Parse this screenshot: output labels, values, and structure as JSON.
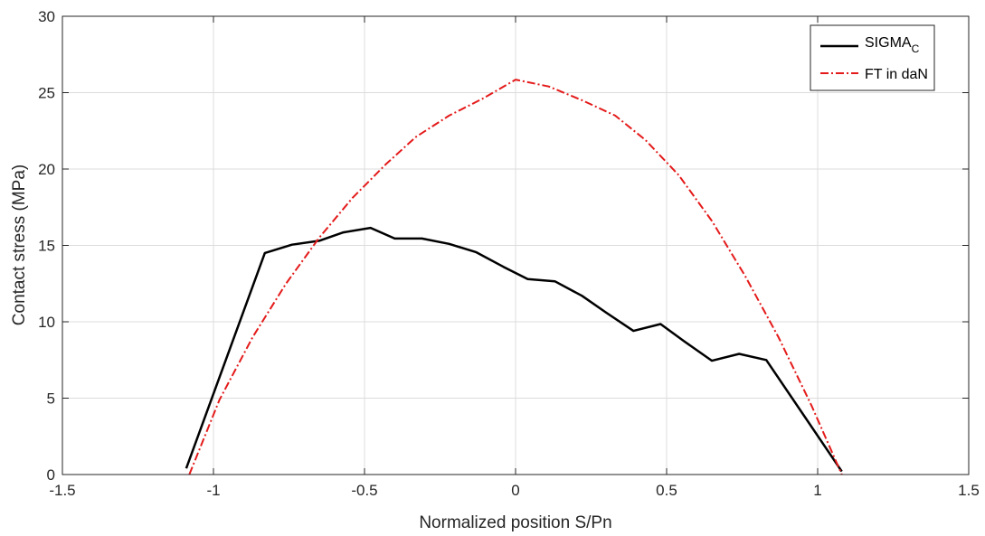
{
  "chart_data": {
    "type": "line",
    "xlabel": "Normalized position S/Pn",
    "ylabel": "Contact stress (MPa)",
    "xlim": [
      -1.5,
      1.5
    ],
    "ylim": [
      0,
      30
    ],
    "xticks": [
      -1.5,
      -1,
      -0.5,
      0,
      0.5,
      1,
      1.5
    ],
    "xtick_labels": [
      "-1.5",
      "-1",
      "-0.5",
      "0",
      "0.5",
      "1",
      "1.5"
    ],
    "yticks": [
      0,
      5,
      10,
      15,
      20,
      25,
      30
    ],
    "ytick_labels": [
      "0",
      "5",
      "10",
      "15",
      "20",
      "25",
      "30"
    ],
    "grid": true,
    "legend_position": "top-right",
    "series": [
      {
        "name": "SIGMA",
        "name_subscript": "C",
        "color": "#000000",
        "style": "solid",
        "x": [
          -1.09,
          -0.83,
          -0.74,
          -0.65,
          -0.57,
          -0.48,
          -0.4,
          -0.31,
          -0.22,
          -0.13,
          -0.04,
          0.04,
          0.13,
          0.22,
          0.3,
          0.39,
          0.48,
          0.56,
          0.65,
          0.74,
          0.83,
          1.08
        ],
        "y": [
          0.4,
          14.5,
          15.05,
          15.3,
          15.85,
          16.15,
          15.45,
          15.45,
          15.1,
          14.55,
          13.6,
          12.8,
          12.65,
          11.7,
          10.6,
          9.4,
          9.85,
          8.7,
          7.45,
          7.9,
          7.5,
          0.2
        ]
      },
      {
        "name": "FT in daN",
        "color": "#e41a1a",
        "style": "dash-dot",
        "x": [
          -1.08,
          -0.98,
          -0.87,
          -0.76,
          -0.65,
          -0.54,
          -0.43,
          -0.33,
          -0.22,
          -0.11,
          0.0,
          0.11,
          0.22,
          0.33,
          0.43,
          0.54,
          0.65,
          0.76,
          0.87,
          0.98,
          1.08
        ],
        "y": [
          0.0,
          4.9,
          9.0,
          12.5,
          15.5,
          18.1,
          20.3,
          22.1,
          23.5,
          24.6,
          25.85,
          25.4,
          24.5,
          23.5,
          21.9,
          19.6,
          16.6,
          13.0,
          9.0,
          4.5,
          0.0
        ]
      }
    ]
  }
}
